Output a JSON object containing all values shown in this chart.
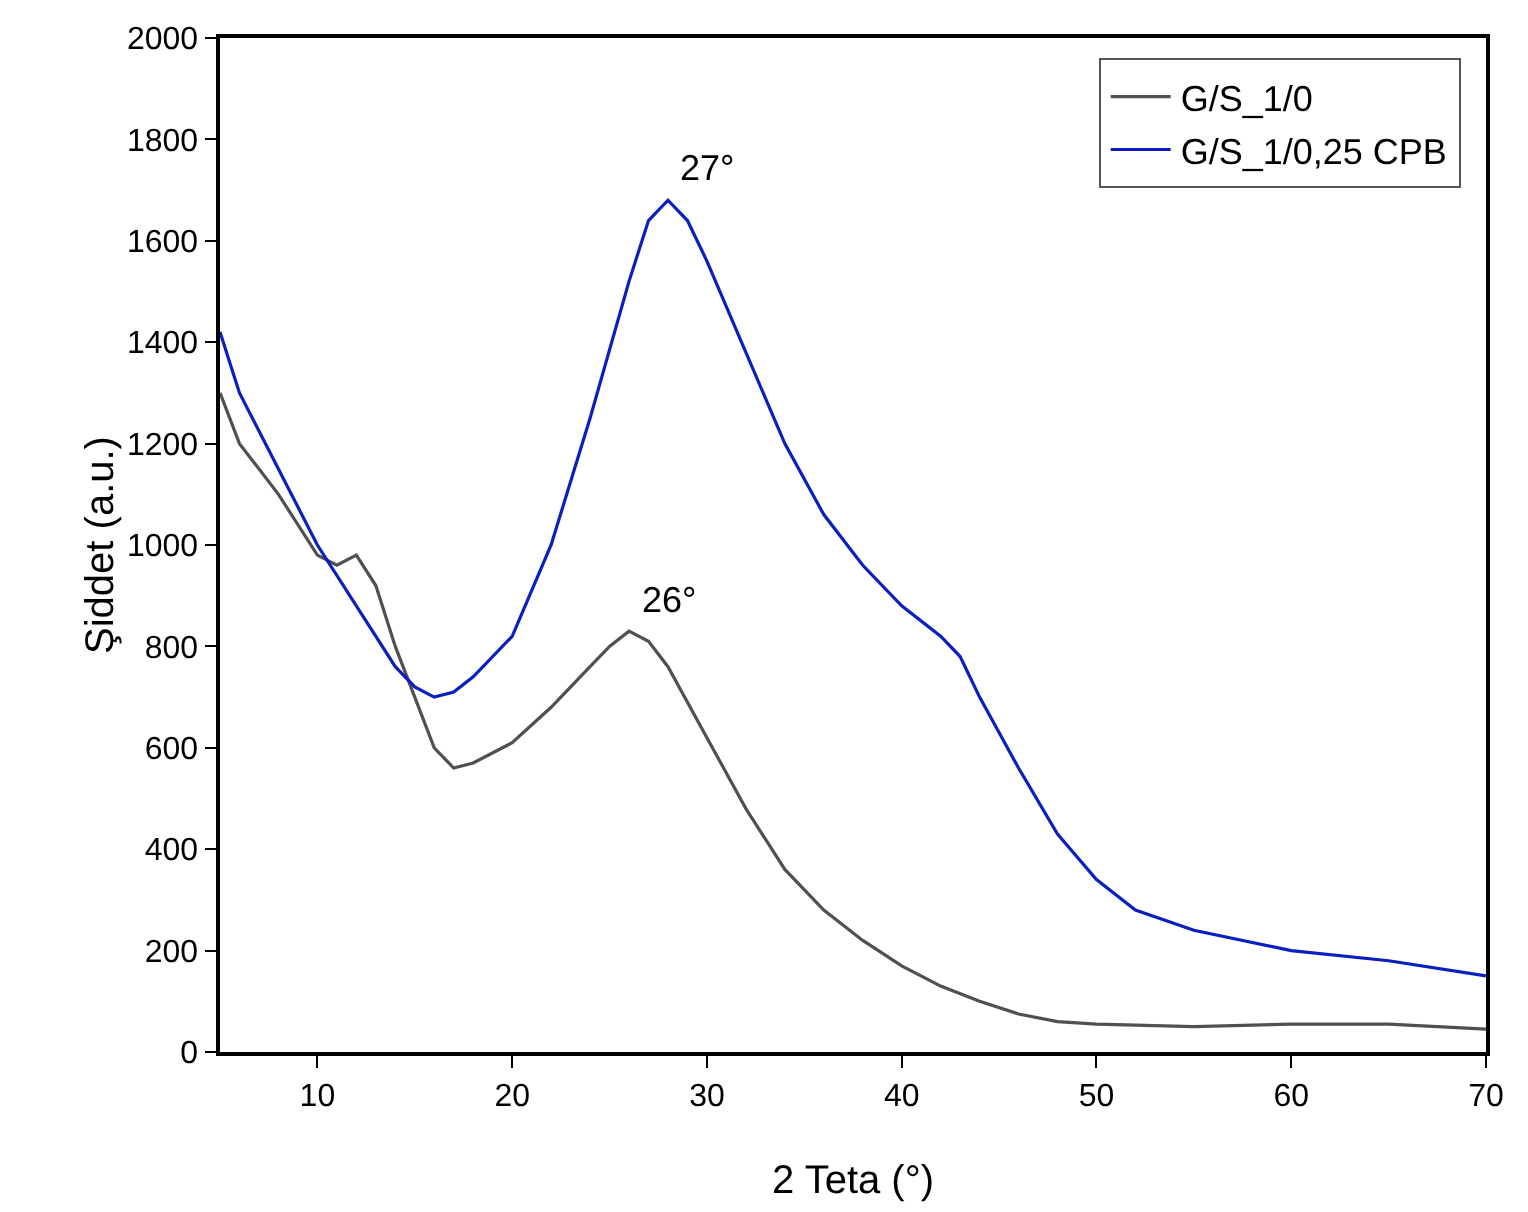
{
  "chart_data": {
    "type": "line",
    "xlabel": "2 Teta (°)",
    "ylabel": "Şiddet (a.u.)",
    "xlim": [
      5,
      70
    ],
    "xticks": [
      10,
      20,
      30,
      40,
      50,
      60,
      70
    ],
    "ylim": [
      0,
      2000
    ],
    "yticks": [
      0,
      200,
      400,
      600,
      800,
      1000,
      1200,
      1400,
      1600,
      1800,
      2000
    ],
    "grid": false,
    "legend": "top right",
    "marker": "none",
    "line_style": "solid",
    "annotations": [
      {
        "text": "26°",
        "x": 26,
        "y": 830
      },
      {
        "text": "27°",
        "x": 28,
        "y": 1680
      }
    ],
    "series": [
      {
        "name": "G/S_1/0",
        "color": "#505050",
        "x": [
          5,
          6,
          8,
          10,
          11,
          12,
          13,
          14,
          15,
          16,
          17,
          18,
          20,
          22,
          24,
          25,
          26,
          27,
          28,
          30,
          32,
          34,
          36,
          38,
          40,
          42,
          44,
          46,
          48,
          50,
          55,
          60,
          65,
          70
        ],
        "values": [
          1300,
          1200,
          1100,
          980,
          960,
          980,
          920,
          800,
          700,
          600,
          560,
          570,
          610,
          680,
          760,
          800,
          830,
          810,
          760,
          620,
          480,
          360,
          280,
          220,
          170,
          130,
          100,
          75,
          60,
          55,
          50,
          55,
          55,
          45
        ]
      },
      {
        "name": "G/S_1/0,25 CPB",
        "color": "#0a1fbf",
        "x": [
          5,
          6,
          8,
          10,
          12,
          14,
          15,
          16,
          17,
          18,
          20,
          22,
          24,
          26,
          27,
          28,
          29,
          30,
          32,
          34,
          36,
          38,
          40,
          42,
          43,
          44,
          46,
          48,
          50,
          52,
          55,
          60,
          65,
          70
        ],
        "values": [
          1420,
          1300,
          1150,
          1000,
          880,
          760,
          720,
          700,
          710,
          740,
          820,
          1000,
          1250,
          1520,
          1640,
          1680,
          1640,
          1560,
          1380,
          1200,
          1060,
          960,
          880,
          820,
          780,
          700,
          560,
          430,
          340,
          280,
          240,
          200,
          180,
          150
        ]
      }
    ]
  }
}
